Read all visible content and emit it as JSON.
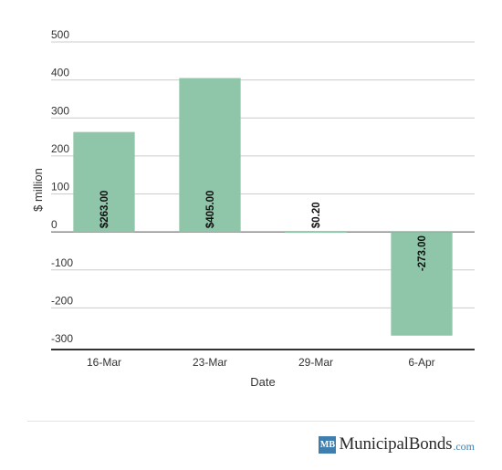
{
  "chart_data": {
    "type": "bar",
    "categories": [
      "16-Mar",
      "23-Mar",
      "29-Mar",
      "6-Apr"
    ],
    "values": [
      263,
      405,
      0.2,
      -273
    ],
    "data_labels": [
      "$263.00",
      "$405.00",
      "$0.20",
      "-273.00"
    ],
    "xlabel": "Date",
    "ylabel": "$ million",
    "ylim": [
      -300,
      500
    ],
    "yticks": [
      500,
      400,
      300,
      200,
      100,
      0,
      -100,
      -200,
      -300
    ],
    "grid": true,
    "bar_color": "#8fc5a8",
    "grid_color": "#cccccc",
    "axis_color": "#333333"
  },
  "footer": {
    "logo_badge": "MB",
    "logo_name": "MunicipalBonds",
    "logo_tld": ".com",
    "brand_color": "#3f7fb0"
  }
}
